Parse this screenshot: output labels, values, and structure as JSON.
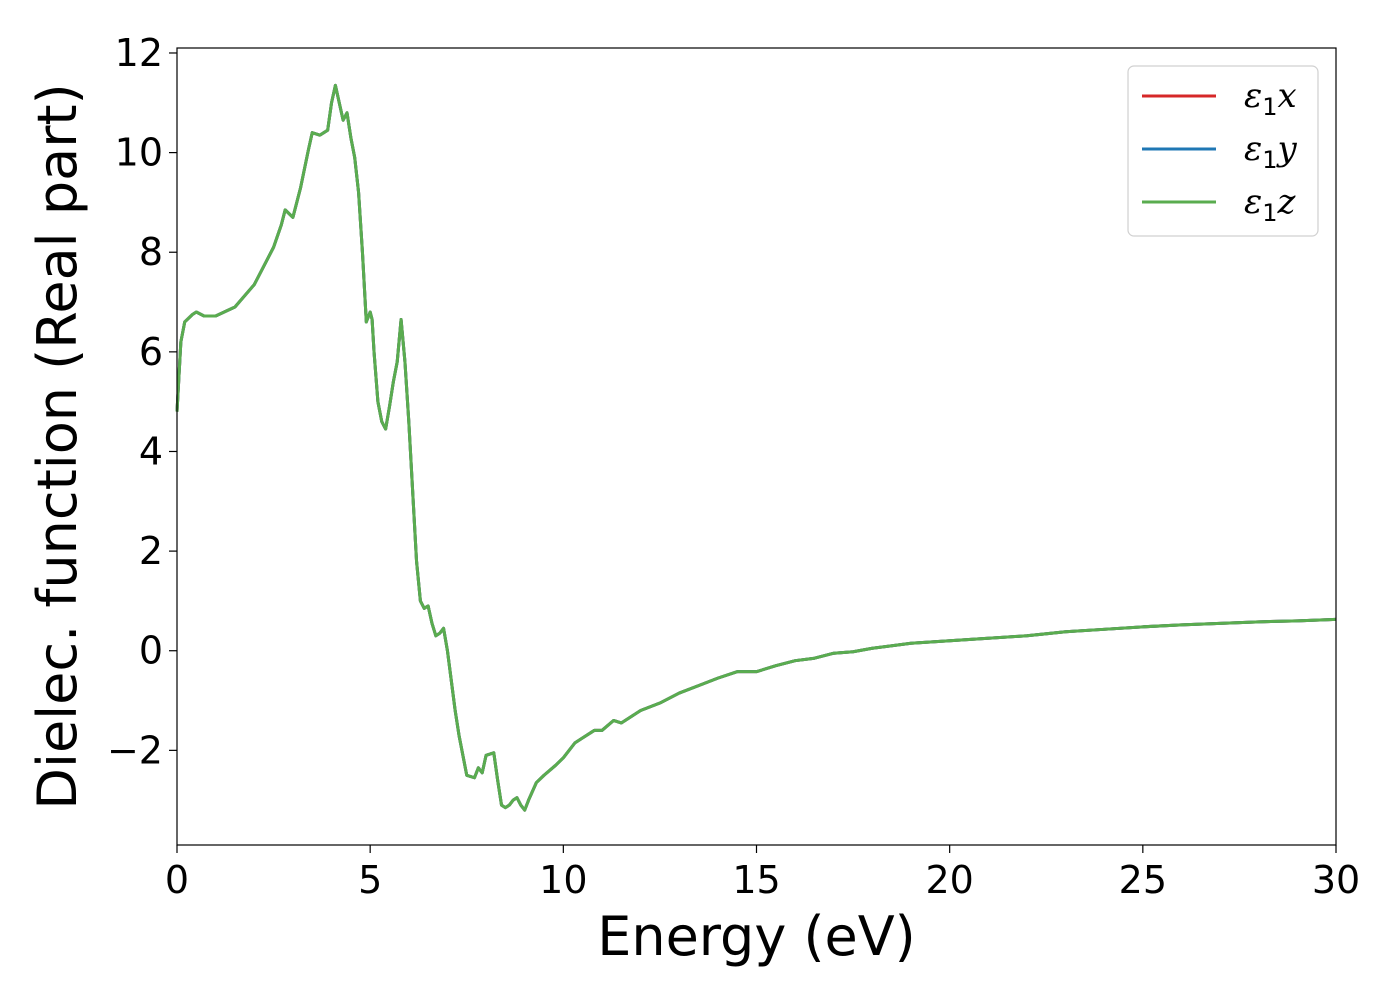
{
  "chart_data": {
    "type": "line",
    "xlabel": "Energy (eV)",
    "ylabel": "Dielec. function (Real part)",
    "xlim": [
      0,
      30
    ],
    "ylim": [
      -3.9,
      12.1
    ],
    "xticks": [
      0,
      5,
      10,
      15,
      20,
      25,
      30
    ],
    "xtick_labels": [
      "0",
      "5",
      "10",
      "15",
      "20",
      "25",
      "30"
    ],
    "yticks": [
      -2,
      0,
      2,
      4,
      6,
      8,
      10,
      12
    ],
    "ytick_labels": [
      "−2",
      "0",
      "2",
      "4",
      "6",
      "8",
      "10",
      "12"
    ],
    "grid": false,
    "legend_position": "top-right",
    "x": [
      0,
      0.1,
      0.2,
      0.4,
      0.5,
      0.7,
      1.0,
      1.5,
      2.0,
      2.3,
      2.5,
      2.7,
      2.8,
      3.0,
      3.2,
      3.4,
      3.5,
      3.7,
      3.9,
      4.0,
      4.1,
      4.2,
      4.3,
      4.4,
      4.5,
      4.6,
      4.7,
      4.8,
      4.9,
      5.0,
      5.05,
      5.1,
      5.2,
      5.3,
      5.4,
      5.5,
      5.6,
      5.7,
      5.8,
      5.9,
      6.0,
      6.1,
      6.2,
      6.3,
      6.4,
      6.5,
      6.6,
      6.7,
      6.8,
      6.9,
      7.0,
      7.1,
      7.2,
      7.3,
      7.5,
      7.7,
      7.8,
      7.9,
      8.0,
      8.2,
      8.3,
      8.4,
      8.5,
      8.6,
      8.7,
      8.8,
      8.9,
      9.0,
      9.1,
      9.3,
      9.5,
      9.8,
      10.0,
      10.3,
      10.5,
      10.8,
      11.0,
      11.3,
      11.5,
      11.8,
      12.0,
      12.5,
      13.0,
      13.5,
      14.0,
      14.5,
      15.0,
      15.5,
      16.0,
      16.5,
      17.0,
      17.5,
      18.0,
      19.0,
      20.0,
      21.0,
      22.0,
      23.0,
      24.0,
      25.0,
      26.0,
      27.0,
      28.0,
      29.0,
      30.0
    ],
    "series": [
      {
        "name": "ε1x",
        "label_main": "ε",
        "label_sub": "1",
        "label_axis": "x",
        "color": "#d62728",
        "values": [
          4.8,
          6.2,
          6.6,
          6.75,
          6.8,
          6.72,
          6.72,
          6.9,
          7.35,
          7.8,
          8.1,
          8.55,
          8.85,
          8.7,
          9.3,
          10.05,
          10.4,
          10.35,
          10.45,
          11.0,
          11.35,
          11.0,
          10.65,
          10.8,
          10.3,
          9.9,
          9.2,
          8.0,
          6.6,
          6.8,
          6.65,
          6.0,
          5.0,
          4.6,
          4.45,
          4.9,
          5.4,
          5.8,
          6.65,
          5.8,
          4.6,
          3.2,
          1.8,
          1.0,
          0.85,
          0.9,
          0.55,
          0.3,
          0.35,
          0.45,
          0.0,
          -0.6,
          -1.2,
          -1.7,
          -2.5,
          -2.55,
          -2.35,
          -2.45,
          -2.1,
          -2.05,
          -2.6,
          -3.1,
          -3.15,
          -3.1,
          -3.0,
          -2.95,
          -3.1,
          -3.2,
          -3.0,
          -2.65,
          -2.5,
          -2.3,
          -2.15,
          -1.85,
          -1.75,
          -1.6,
          -1.6,
          -1.4,
          -1.45,
          -1.3,
          -1.2,
          -1.05,
          -0.85,
          -0.7,
          -0.55,
          -0.42,
          -0.42,
          -0.3,
          -0.2,
          -0.15,
          -0.05,
          -0.02,
          0.05,
          0.15,
          0.2,
          0.25,
          0.3,
          0.38,
          0.43,
          0.48,
          0.52,
          0.55,
          0.58,
          0.6,
          0.63
        ]
      },
      {
        "name": "ε1y",
        "label_main": "ε",
        "label_sub": "1",
        "label_axis": "y",
        "color": "#1f77b4",
        "values": [
          4.8,
          6.2,
          6.6,
          6.75,
          6.8,
          6.72,
          6.72,
          6.9,
          7.35,
          7.8,
          8.1,
          8.55,
          8.85,
          8.7,
          9.3,
          10.05,
          10.4,
          10.35,
          10.45,
          11.0,
          11.35,
          11.0,
          10.65,
          10.8,
          10.3,
          9.9,
          9.2,
          8.0,
          6.6,
          6.8,
          6.65,
          6.0,
          5.0,
          4.6,
          4.45,
          4.9,
          5.4,
          5.8,
          6.65,
          5.8,
          4.6,
          3.2,
          1.8,
          1.0,
          0.85,
          0.9,
          0.55,
          0.3,
          0.35,
          0.45,
          0.0,
          -0.6,
          -1.2,
          -1.7,
          -2.5,
          -2.55,
          -2.35,
          -2.45,
          -2.1,
          -2.05,
          -2.6,
          -3.1,
          -3.15,
          -3.1,
          -3.0,
          -2.95,
          -3.1,
          -3.2,
          -3.0,
          -2.65,
          -2.5,
          -2.3,
          -2.15,
          -1.85,
          -1.75,
          -1.6,
          -1.6,
          -1.4,
          -1.45,
          -1.3,
          -1.2,
          -1.05,
          -0.85,
          -0.7,
          -0.55,
          -0.42,
          -0.42,
          -0.3,
          -0.2,
          -0.15,
          -0.05,
          -0.02,
          0.05,
          0.15,
          0.2,
          0.25,
          0.3,
          0.38,
          0.43,
          0.48,
          0.52,
          0.55,
          0.58,
          0.6,
          0.63
        ]
      },
      {
        "name": "ε1z",
        "label_main": "ε",
        "label_sub": "1",
        "label_axis": "z",
        "color": "#5aac4f",
        "values": [
          4.8,
          6.2,
          6.6,
          6.75,
          6.8,
          6.72,
          6.72,
          6.9,
          7.35,
          7.8,
          8.1,
          8.55,
          8.85,
          8.7,
          9.3,
          10.05,
          10.4,
          10.35,
          10.45,
          11.0,
          11.35,
          11.0,
          10.65,
          10.8,
          10.3,
          9.9,
          9.2,
          8.0,
          6.6,
          6.8,
          6.65,
          6.0,
          5.0,
          4.6,
          4.45,
          4.9,
          5.4,
          5.8,
          6.65,
          5.8,
          4.6,
          3.2,
          1.8,
          1.0,
          0.85,
          0.9,
          0.55,
          0.3,
          0.35,
          0.45,
          0.0,
          -0.6,
          -1.2,
          -1.7,
          -2.5,
          -2.55,
          -2.35,
          -2.45,
          -2.1,
          -2.05,
          -2.6,
          -3.1,
          -3.15,
          -3.1,
          -3.0,
          -2.95,
          -3.1,
          -3.2,
          -3.0,
          -2.65,
          -2.5,
          -2.3,
          -2.15,
          -1.85,
          -1.75,
          -1.6,
          -1.6,
          -1.4,
          -1.45,
          -1.3,
          -1.2,
          -1.05,
          -0.85,
          -0.7,
          -0.55,
          -0.42,
          -0.42,
          -0.3,
          -0.2,
          -0.15,
          -0.05,
          -0.02,
          0.05,
          0.15,
          0.2,
          0.25,
          0.3,
          0.38,
          0.43,
          0.48,
          0.52,
          0.55,
          0.58,
          0.6,
          0.63
        ]
      }
    ]
  }
}
